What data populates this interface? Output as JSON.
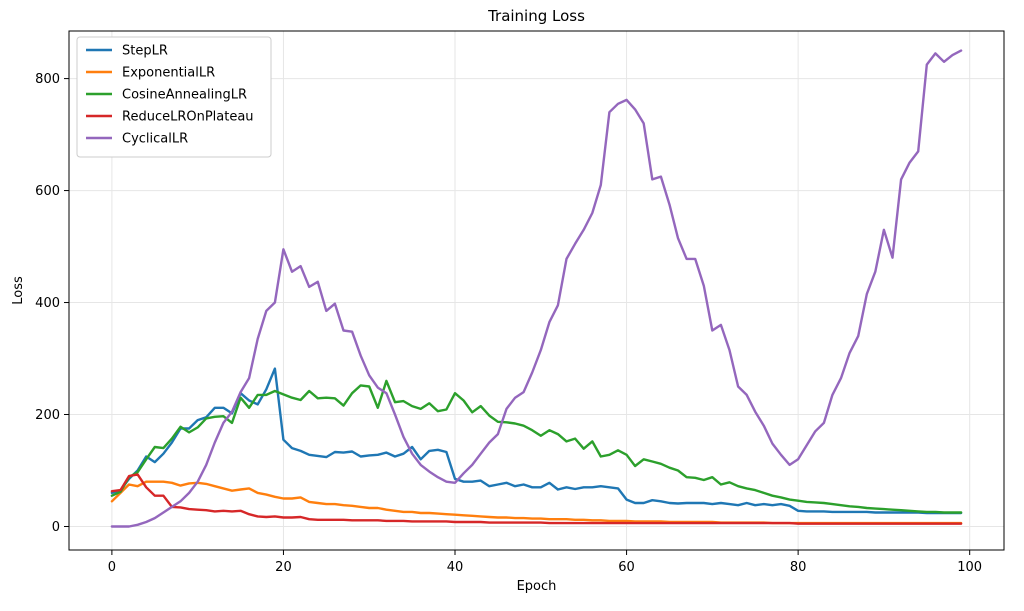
{
  "chart_data": {
    "type": "line",
    "title": "Training Loss",
    "xlabel": "Epoch",
    "ylabel": "Loss",
    "xlim": [
      -5,
      104
    ],
    "ylim": [
      -42,
      885
    ],
    "xticks": [
      0,
      20,
      40,
      60,
      80,
      100
    ],
    "yticks": [
      0,
      200,
      400,
      600,
      800
    ],
    "grid": true,
    "legend_position": "top-left",
    "x": [
      0,
      1,
      2,
      3,
      4,
      5,
      6,
      7,
      8,
      9,
      10,
      11,
      12,
      13,
      14,
      15,
      16,
      17,
      18,
      19,
      20,
      21,
      22,
      23,
      24,
      25,
      26,
      27,
      28,
      29,
      30,
      31,
      32,
      33,
      34,
      35,
      36,
      37,
      38,
      39,
      40,
      41,
      42,
      43,
      44,
      45,
      46,
      47,
      48,
      49,
      50,
      51,
      52,
      53,
      54,
      55,
      56,
      57,
      58,
      59,
      60,
      61,
      62,
      63,
      64,
      65,
      66,
      67,
      68,
      69,
      70,
      71,
      72,
      73,
      74,
      75,
      76,
      77,
      78,
      79,
      80,
      81,
      82,
      83,
      84,
      85,
      86,
      87,
      88,
      89,
      90,
      91,
      92,
      93,
      94,
      95,
      96,
      97,
      98,
      99
    ],
    "series": [
      {
        "name": "StepLR",
        "color": "#1f77b4",
        "values": [
          60,
          65,
          85,
          100,
          125,
          115,
          130,
          150,
          175,
          175,
          190,
          195,
          212,
          212,
          202,
          238,
          225,
          218,
          245,
          282,
          155,
          140,
          135,
          128,
          126,
          124,
          133,
          132,
          134,
          125,
          127,
          128,
          132,
          125,
          130,
          142,
          120,
          135,
          137,
          133,
          85,
          80,
          80,
          82,
          72,
          75,
          78,
          72,
          75,
          70,
          70,
          78,
          66,
          70,
          67,
          70,
          70,
          72,
          70,
          68,
          48,
          42,
          42,
          47,
          45,
          42,
          41,
          42,
          42,
          42,
          40,
          42,
          40,
          38,
          42,
          38,
          40,
          38,
          40,
          37,
          28,
          27,
          27,
          27,
          26,
          26,
          26,
          26,
          26,
          25,
          25,
          25,
          25,
          25,
          25,
          24,
          24,
          24,
          24,
          24
        ]
      },
      {
        "name": "ExponentialLR",
        "color": "#ff7f0e",
        "values": [
          45,
          60,
          75,
          72,
          80,
          80,
          80,
          78,
          73,
          77,
          78,
          76,
          72,
          68,
          64,
          66,
          68,
          60,
          57,
          53,
          50,
          50,
          52,
          44,
          42,
          40,
          40,
          38,
          37,
          35,
          33,
          33,
          30,
          28,
          26,
          26,
          24,
          24,
          23,
          22,
          21,
          20,
          19,
          18,
          17,
          16,
          16,
          15,
          15,
          14,
          14,
          13,
          13,
          13,
          12,
          12,
          11,
          11,
          10,
          10,
          10,
          9,
          9,
          9,
          9,
          8,
          8,
          8,
          8,
          8,
          8,
          7,
          7,
          7,
          7,
          7,
          7,
          6,
          6,
          6,
          6,
          6,
          6,
          6,
          6,
          6,
          6,
          6,
          6,
          6,
          6,
          6,
          6,
          6,
          6,
          6,
          6,
          6,
          6,
          6
        ]
      },
      {
        "name": "CosineAnnealingLR",
        "color": "#2ca02c",
        "values": [
          55,
          62,
          88,
          97,
          120,
          142,
          140,
          157,
          178,
          168,
          177,
          193,
          196,
          197,
          185,
          230,
          212,
          235,
          235,
          242,
          236,
          230,
          226,
          242,
          229,
          230,
          229,
          216,
          238,
          252,
          250,
          212,
          260,
          222,
          224,
          215,
          210,
          220,
          206,
          209,
          238,
          225,
          204,
          215,
          198,
          187,
          186,
          184,
          180,
          172,
          162,
          172,
          165,
          152,
          157,
          139,
          152,
          125,
          128,
          136,
          128,
          108,
          120,
          116,
          112,
          105,
          100,
          88,
          87,
          83,
          88,
          75,
          79,
          72,
          68,
          65,
          60,
          55,
          52,
          48,
          46,
          44,
          43,
          42,
          40,
          38,
          36,
          35,
          33,
          32,
          31,
          30,
          29,
          28,
          27,
          26,
          26,
          25,
          25,
          25
        ]
      },
      {
        "name": "ReduceLROnPlateau",
        "color": "#d62728",
        "values": [
          63,
          65,
          90,
          93,
          70,
          55,
          55,
          35,
          34,
          31,
          30,
          29,
          27,
          28,
          27,
          28,
          22,
          18,
          17,
          18,
          16,
          16,
          17,
          13,
          12,
          12,
          12,
          12,
          11,
          11,
          11,
          11,
          10,
          10,
          10,
          9,
          9,
          9,
          9,
          9,
          8,
          8,
          8,
          8,
          7,
          7,
          7,
          7,
          7,
          7,
          7,
          6,
          6,
          6,
          6,
          6,
          6,
          6,
          6,
          6,
          6,
          6,
          6,
          6,
          6,
          6,
          6,
          6,
          6,
          6,
          6,
          6,
          6,
          6,
          6,
          6,
          6,
          6,
          6,
          6,
          5,
          5,
          5,
          5,
          5,
          5,
          5,
          5,
          5,
          5,
          5,
          5,
          5,
          5,
          5,
          5,
          5,
          5,
          5,
          5
        ]
      },
      {
        "name": "CyclicalLR",
        "color": "#9467bd",
        "values": [
          0,
          0,
          0,
          3,
          8,
          15,
          25,
          35,
          45,
          60,
          80,
          110,
          150,
          185,
          205,
          240,
          265,
          335,
          385,
          400,
          495,
          455,
          465,
          428,
          437,
          385,
          398,
          350,
          348,
          305,
          270,
          248,
          238,
          200,
          160,
          130,
          110,
          98,
          88,
          80,
          78,
          95,
          110,
          130,
          150,
          165,
          210,
          230,
          240,
          275,
          315,
          365,
          395,
          478,
          505,
          530,
          560,
          610,
          740,
          755,
          762,
          745,
          720,
          620,
          625,
          575,
          515,
          478,
          478,
          430,
          350,
          360,
          315,
          250,
          235,
          205,
          180,
          148,
          128,
          110,
          120,
          145,
          170,
          185,
          235,
          265,
          310,
          340,
          415,
          455,
          530,
          480,
          620,
          650,
          670,
          825,
          845,
          830,
          842,
          850
        ]
      }
    ]
  }
}
